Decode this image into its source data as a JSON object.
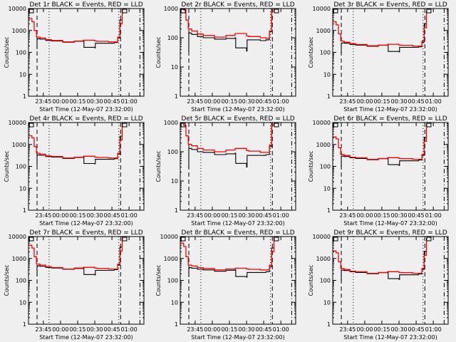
{
  "chart_data": [
    {
      "type": "line",
      "title": "Det 1r BLACK = Events, RED = LLD",
      "ylim": [
        1,
        10000
      ],
      "red": [
        3500,
        2500,
        1000,
        500,
        450,
        380,
        350,
        300,
        330,
        360,
        360,
        330,
        320,
        300,
        300,
        500,
        2000,
        10000
      ],
      "black": [
        150,
        400,
        420,
        400,
        350,
        330,
        290,
        320,
        340,
        170,
        160,
        260,
        260,
        280,
        450,
        3000,
        12000
      ]
    },
    {
      "type": "line",
      "title": "Det 2r BLACK = Events, RED = LLD",
      "ylim": [
        1,
        1000
      ],
      "red": [
        1000,
        900,
        400,
        200,
        170,
        135,
        120,
        105,
        120,
        140,
        140,
        115,
        110,
        100,
        95,
        170,
        800,
        3500
      ],
      "black": [
        35,
        150,
        145,
        130,
        110,
        100,
        90,
        95,
        100,
        45,
        35,
        85,
        80,
        85,
        160,
        1000,
        4000
      ]
    },
    {
      "type": "line",
      "title": "Det 3r BLACK = Events, RED = LLD",
      "ylim": [
        1,
        10000
      ],
      "red": [
        2500,
        1800,
        700,
        330,
        290,
        250,
        230,
        200,
        215,
        235,
        235,
        215,
        210,
        195,
        195,
        330,
        1300,
        6500
      ],
      "black": [
        100,
        260,
        270,
        260,
        230,
        215,
        190,
        210,
        220,
        110,
        105,
        170,
        170,
        180,
        290,
        2000,
        8000
      ]
    },
    {
      "type": "line",
      "title": "Det 4r BLACK = Events, RED = LLD",
      "ylim": [
        1,
        10000
      ],
      "red": [
        2500,
        2000,
        800,
        400,
        360,
        300,
        280,
        240,
        265,
        290,
        290,
        265,
        255,
        240,
        240,
        400,
        1600,
        8000
      ],
      "black": [
        120,
        320,
        335,
        320,
        280,
        265,
        230,
        255,
        270,
        135,
        130,
        210,
        210,
        225,
        360,
        2400,
        10000
      ]
    },
    {
      "type": "line",
      "title": "Det 5r BLACK = Events, RED = LLD",
      "ylim": [
        1,
        1000
      ],
      "red": [
        1000,
        800,
        350,
        180,
        160,
        130,
        115,
        100,
        115,
        130,
        130,
        110,
        105,
        95,
        95,
        170,
        800,
        3500
      ],
      "black": [
        30,
        130,
        130,
        120,
        100,
        95,
        80,
        85,
        90,
        40,
        30,
        75,
        75,
        80,
        150,
        1000,
        4000
      ]
    },
    {
      "type": "line",
      "title": "Det 6r BLACK = Events, RED = LLD",
      "ylim": [
        1,
        10000
      ],
      "red": [
        2200,
        1800,
        700,
        350,
        315,
        265,
        245,
        210,
        230,
        250,
        250,
        230,
        225,
        210,
        210,
        350,
        1400,
        7000
      ],
      "black": [
        105,
        280,
        295,
        280,
        245,
        230,
        200,
        225,
        240,
        120,
        110,
        180,
        180,
        195,
        315,
        2100,
        8400
      ]
    },
    {
      "type": "line",
      "title": "Det 7r BLACK = Events, RED = LLD",
      "ylim": [
        1,
        10000
      ],
      "red": [
        4000,
        3000,
        1200,
        550,
        500,
        420,
        385,
        330,
        365,
        395,
        395,
        365,
        350,
        330,
        330,
        550,
        2200,
        11000
      ],
      "black": [
        165,
        440,
        460,
        440,
        385,
        365,
        320,
        350,
        375,
        185,
        175,
        285,
        285,
        310,
        495,
        3300,
        13000
      ]
    },
    {
      "type": "line",
      "title": "Det 8r BLACK = Events, RED = LLD",
      "ylim": [
        1,
        10000
      ],
      "red": [
        5000,
        3500,
        1200,
        500,
        450,
        380,
        350,
        300,
        330,
        360,
        360,
        330,
        320,
        300,
        300,
        500,
        2000,
        10000
      ],
      "black": [
        150,
        360,
        380,
        360,
        320,
        300,
        260,
        290,
        300,
        150,
        140,
        230,
        230,
        250,
        420,
        3000,
        12000
      ]
    },
    {
      "type": "line",
      "title": "Det 9r BLACK = Events, RED = LLD",
      "ylim": [
        1,
        10000
      ],
      "red": [
        2200,
        1800,
        700,
        350,
        315,
        265,
        245,
        210,
        230,
        250,
        250,
        230,
        225,
        210,
        210,
        350,
        1400,
        7000
      ],
      "black": [
        105,
        280,
        295,
        280,
        245,
        230,
        200,
        225,
        240,
        120,
        110,
        180,
        180,
        195,
        315,
        2100,
        8400
      ]
    }
  ],
  "shared": {
    "xlabel": "Start Time (12-May-07 23:32:00)",
    "ylabel": "Counts/sec",
    "x_minutes_range": [
      0,
      101
    ],
    "red_t": [
      0,
      3,
      5,
      7,
      10,
      15,
      20,
      30,
      40,
      48,
      50,
      58,
      60,
      70,
      75,
      78,
      80,
      82
    ],
    "black_t": [
      7,
      7.5,
      8,
      10,
      15,
      20,
      30,
      40,
      48,
      48.5,
      58,
      58.5,
      70,
      75,
      78,
      80,
      82
    ],
    "xticks": [
      {
        "t": 13,
        "label": "23:45"
      },
      {
        "t": 28,
        "label": "00:00"
      },
      {
        "t": 43,
        "label": "00:15"
      },
      {
        "t": 58,
        "label": "00:30"
      },
      {
        "t": 73,
        "label": "00:45"
      },
      {
        "t": 88,
        "label": "01:00"
      }
    ],
    "vlines": [
      {
        "t": 7.5,
        "style": "dashed"
      },
      {
        "t": 18,
        "style": "dotted"
      },
      {
        "t": 79,
        "style": "dotted"
      },
      {
        "t": 80.6,
        "style": "dashed"
      },
      {
        "t": 97.5,
        "style": "dashdot"
      }
    ],
    "colors": {
      "events": "#000000",
      "lld": "#ff0000"
    }
  }
}
